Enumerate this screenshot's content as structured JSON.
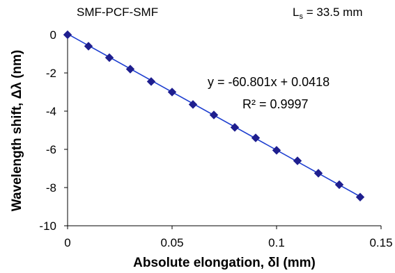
{
  "header": {
    "left_label": "SMF-PCF-SMF",
    "right_label_main": "L",
    "right_label_sub": "s",
    "right_label_value": " = 33.5 mm"
  },
  "chart_data": {
    "type": "scatter",
    "title": "",
    "xlabel": "Absolute elongation, δl (mm)",
    "ylabel": "Wavelength shift, Δλ  (nm)",
    "xlim": [
      0,
      0.15
    ],
    "ylim": [
      -10,
      0
    ],
    "x_ticks": [
      "0",
      "0.05",
      "0.1",
      "0.15"
    ],
    "y_ticks": [
      "0",
      "-2",
      "-4",
      "-6",
      "-8",
      "-10"
    ],
    "x_tick_values": [
      0,
      0.05,
      0.1,
      0.15
    ],
    "y_tick_values": [
      0,
      -2,
      -4,
      -6,
      -8,
      -10
    ],
    "grid": false,
    "marker": "diamond",
    "color": "#1f1f8f",
    "fit_color": "#1e3fd0",
    "series": [
      {
        "x": [
          0,
          0.01,
          0.02,
          0.03,
          0.04,
          0.05,
          0.06,
          0.07,
          0.08,
          0.09,
          0.1,
          0.11,
          0.12,
          0.13,
          0.14
        ],
        "y": [
          0,
          -0.6,
          -1.2,
          -1.8,
          -2.45,
          -3.0,
          -3.65,
          -4.2,
          -4.85,
          -5.4,
          -6.05,
          -6.6,
          -7.25,
          -7.85,
          -8.5
        ]
      }
    ],
    "fit": {
      "slope": -60.801,
      "intercept": 0.0418,
      "x_range": [
        0,
        0.14
      ]
    },
    "annotations": [
      "y = -60.801x + 0.0418",
      "R² = 0.9997"
    ]
  }
}
